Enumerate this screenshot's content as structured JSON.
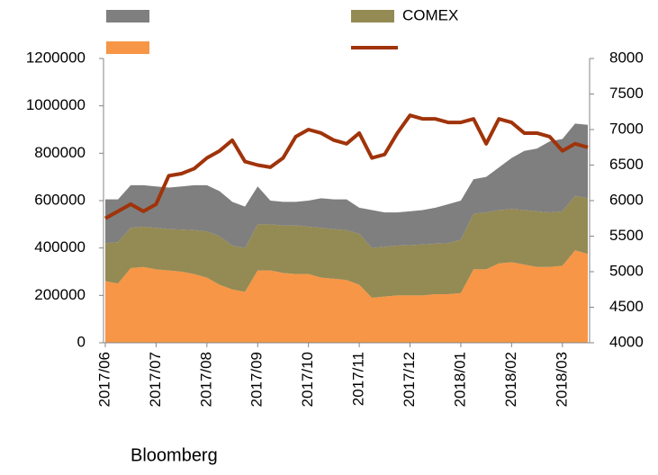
{
  "chart_data": {
    "type": "stacked-area-line",
    "source": "Bloomberg",
    "categories": [
      "2017/06",
      null,
      null,
      null,
      "2017/07",
      null,
      null,
      null,
      "2017/08",
      null,
      null,
      null,
      "2017/09",
      null,
      null,
      null,
      "2017/10",
      null,
      null,
      null,
      "2017/11",
      null,
      null,
      null,
      "2017/12",
      null,
      null,
      null,
      "2018/01",
      null,
      null,
      null,
      "2018/02",
      null,
      null,
      null,
      "2018/03",
      null,
      null
    ],
    "series": [
      {
        "name": null,
        "color": "#f79646",
        "values": [
          260000,
          250000,
          315000,
          320000,
          310000,
          305000,
          300000,
          290000,
          275000,
          245000,
          225000,
          215000,
          305000,
          305000,
          295000,
          290000,
          290000,
          275000,
          270000,
          265000,
          245000,
          190000,
          195000,
          200000,
          200000,
          200000,
          205000,
          205000,
          210000,
          310000,
          310000,
          335000,
          340000,
          330000,
          320000,
          320000,
          325000,
          390000,
          375000
        ]
      },
      {
        "name": "COMEX",
        "color": "#948a54",
        "values": [
          160000,
          175000,
          170000,
          170000,
          175000,
          175000,
          178000,
          185000,
          195000,
          205000,
          185000,
          185000,
          195000,
          195000,
          200000,
          205000,
          200000,
          210000,
          210000,
          210000,
          215000,
          210000,
          210000,
          210000,
          212000,
          215000,
          213000,
          215000,
          225000,
          235000,
          240000,
          225000,
          225000,
          230000,
          235000,
          230000,
          230000,
          230000,
          235000
        ]
      },
      {
        "name": null,
        "color": "#7f7f7f",
        "values": [
          185000,
          180000,
          180000,
          175000,
          175000,
          175000,
          182000,
          190000,
          195000,
          190000,
          185000,
          175000,
          160000,
          100000,
          100000,
          100000,
          110000,
          125000,
          125000,
          130000,
          110000,
          160000,
          145000,
          140000,
          143000,
          145000,
          152000,
          165000,
          165000,
          145000,
          150000,
          180000,
          215000,
          250000,
          265000,
          300000,
          305000,
          305000,
          310000
        ]
      },
      {
        "name": null,
        "color": "#a0330a",
        "axis": "y2",
        "values": [
          5750,
          5850,
          5950,
          5850,
          5950,
          6350,
          6380,
          6450,
          6600,
          6700,
          6850,
          6550,
          6500,
          6470,
          6600,
          6900,
          7000,
          6950,
          6850,
          6800,
          6950,
          6600,
          6650,
          6950,
          7200,
          7150,
          7150,
          7100,
          7100,
          7150,
          6800,
          7150,
          7100,
          6950,
          6950,
          6900,
          6700,
          6800,
          6750
        ]
      }
    ],
    "ylim": [
      0,
      1200000
    ],
    "yticks": [
      0,
      200000,
      400000,
      600000,
      800000,
      1000000,
      1200000
    ],
    "y2lim": [
      4000,
      8000
    ],
    "y2ticks": [
      4000,
      4500,
      5000,
      5500,
      6000,
      6500,
      7000,
      7500,
      8000
    ]
  }
}
